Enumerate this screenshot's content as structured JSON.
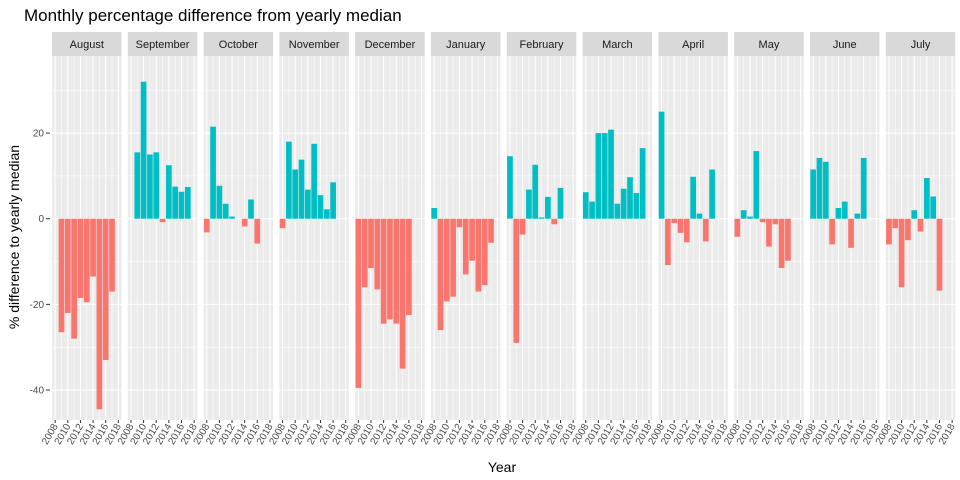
{
  "chart_data": {
    "type": "bar",
    "title": "Monthly percentage difference from yearly median",
    "xlabel": "Year",
    "ylabel": "% difference to yearly median",
    "ylim": [
      -47,
      38
    ],
    "y_ticks": [
      -40,
      -20,
      0,
      20
    ],
    "xlim": [
      2007.5,
      2018.5
    ],
    "x_ticks": [
      2008,
      2010,
      2012,
      2014,
      2016,
      2018
    ],
    "grid": true,
    "legend": "none",
    "colors": {
      "positive": "#00BFC4",
      "negative": "#F8766D",
      "panel_bg": "#EBEBEB",
      "strip_bg": "#D9D9D9",
      "grid": "#FFFFFF"
    },
    "facets": [
      {
        "label": "August",
        "x": [
          2009,
          2010,
          2011,
          2012,
          2013,
          2014,
          2015,
          2016,
          2017
        ],
        "values": [
          -26.5,
          -22,
          -28,
          -18.5,
          -19.5,
          -13.5,
          -44.5,
          -33,
          -17
        ]
      },
      {
        "label": "September",
        "x": [
          2009,
          2010,
          2011,
          2012,
          2013,
          2014,
          2015,
          2016,
          2017,
          2018
        ],
        "values": [
          15.5,
          32,
          15,
          15.5,
          -0.8,
          12.5,
          7.5,
          6.3,
          7.4,
          0
        ]
      },
      {
        "label": "October",
        "x": [
          2008,
          2009,
          2010,
          2011,
          2012,
          2013,
          2014,
          2015,
          2016,
          2017
        ],
        "values": [
          -3.2,
          21.5,
          7.7,
          3.5,
          0.5,
          0,
          -1.8,
          4.5,
          -5.8,
          0
        ]
      },
      {
        "label": "November",
        "x": [
          2008,
          2009,
          2010,
          2011,
          2012,
          2013,
          2014,
          2015,
          2016,
          2017
        ],
        "values": [
          -2.2,
          18,
          11.5,
          13.8,
          6.8,
          17.5,
          5.5,
          2.2,
          8.5,
          0
        ]
      },
      {
        "label": "December",
        "x": [
          2008,
          2009,
          2010,
          2011,
          2012,
          2013,
          2014,
          2015,
          2016,
          2017
        ],
        "values": [
          -39.5,
          -16,
          -11.5,
          -16.5,
          -24.5,
          -23.5,
          -24.5,
          -35,
          -22.5,
          0
        ]
      },
      {
        "label": "January",
        "x": [
          2008,
          2009,
          2010,
          2011,
          2012,
          2013,
          2014,
          2015,
          2016,
          2017
        ],
        "values": [
          2.5,
          -26,
          -19.3,
          -18.2,
          -2,
          -13,
          -9.8,
          -17,
          -15.5,
          -5.6
        ]
      },
      {
        "label": "February",
        "x": [
          2008,
          2009,
          2010,
          2011,
          2012,
          2013,
          2014,
          2015,
          2016,
          2017
        ],
        "values": [
          14.6,
          -29,
          -3.7,
          6.8,
          12.6,
          0.3,
          5.1,
          -1.3,
          7.2,
          0
        ]
      },
      {
        "label": "March",
        "x": [
          2008,
          2009,
          2010,
          2011,
          2012,
          2013,
          2014,
          2015,
          2016,
          2017
        ],
        "values": [
          6.2,
          4,
          20,
          20,
          20.8,
          3.5,
          7,
          9.7,
          6,
          16.5
        ]
      },
      {
        "label": "April",
        "x": [
          2008,
          2009,
          2010,
          2011,
          2012,
          2013,
          2014,
          2015,
          2016,
          2017
        ],
        "values": [
          25,
          -10.8,
          -1,
          -3.3,
          -5.5,
          9.8,
          1.2,
          -5.3,
          11.5,
          0
        ]
      },
      {
        "label": "May",
        "x": [
          2008,
          2009,
          2010,
          2011,
          2012,
          2013,
          2014,
          2015,
          2016,
          2017
        ],
        "values": [
          -4.2,
          2,
          0.5,
          15.8,
          -0.8,
          -6.5,
          -1.3,
          -11.5,
          -9.8,
          0
        ]
      },
      {
        "label": "June",
        "x": [
          2008,
          2009,
          2010,
          2011,
          2012,
          2013,
          2014,
          2015,
          2016,
          2017
        ],
        "values": [
          11.5,
          14.2,
          13.3,
          -6,
          2.5,
          4,
          -6.8,
          1.2,
          14.2,
          0
        ]
      },
      {
        "label": "July",
        "x": [
          2008,
          2009,
          2010,
          2011,
          2012,
          2013,
          2014,
          2015,
          2016,
          2017
        ],
        "values": [
          -6,
          -2.2,
          -16,
          -5,
          2,
          -3,
          9.5,
          5.2,
          -16.8,
          0
        ]
      }
    ]
  }
}
